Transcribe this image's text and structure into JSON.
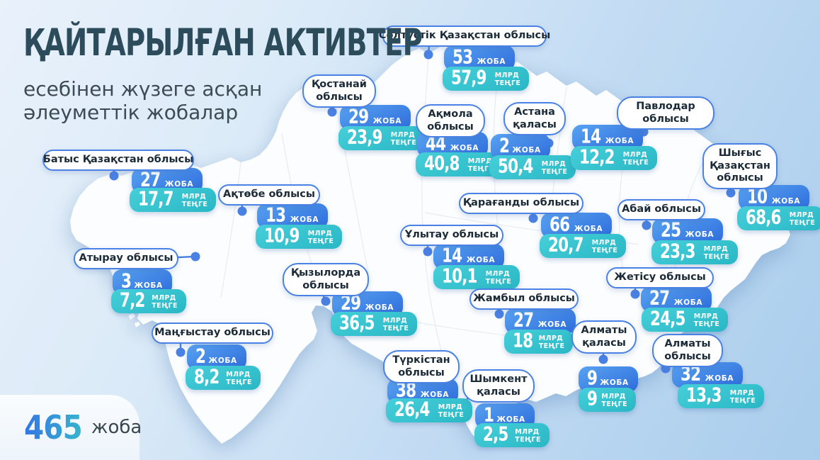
{
  "header": {
    "title": "ҚАЙТАРЫЛҒАН АКТИВТЕР",
    "subtitle_line1": "есебінен жүзеге асқан",
    "subtitle_line2": "әлеуметтік жобалар"
  },
  "total": {
    "value": "465",
    "unit": "жоба"
  },
  "labels": {
    "project_unit": "ЖОБА",
    "amount_unit_top": "МЛРД",
    "amount_unit_bottom": "ТЕҢГЕ"
  },
  "regions": [
    {
      "id": "soltustik-kazakhstan",
      "name": "Солтүстік Қазақстан облысы",
      "projects": "53",
      "amount": "57,9"
    },
    {
      "id": "kostanay",
      "name": "Қостанай облысы",
      "projects": "29",
      "amount": "23,9"
    },
    {
      "id": "akmola",
      "name": "Ақмола облысы",
      "projects": "44",
      "amount": "40,8"
    },
    {
      "id": "astana",
      "name": "Астана қаласы",
      "projects": "2",
      "amount": "50,4"
    },
    {
      "id": "pavlodar",
      "name": "Павлодар облысы",
      "projects": "14",
      "amount": "12,2"
    },
    {
      "id": "shygys-kazakhstan",
      "name": "Шығыс Қазақстан облысы",
      "projects": "10",
      "amount": "68,6"
    },
    {
      "id": "batys-kazakhstan",
      "name": "Батыс Қазақстан облысы",
      "projects": "27",
      "amount": "17,7"
    },
    {
      "id": "aktobe",
      "name": "Ақтөбе облысы",
      "projects": "13",
      "amount": "10,9"
    },
    {
      "id": "atyrau",
      "name": "Атырау облысы",
      "projects": "3",
      "amount": "7,2"
    },
    {
      "id": "kyzylorda",
      "name": "Қызылорда облысы",
      "projects": "29",
      "amount": "36,5"
    },
    {
      "id": "ulytau",
      "name": "Ұлытау облысы",
      "projects": "14",
      "amount": "10,1"
    },
    {
      "id": "karagandy",
      "name": "Қарағанды облысы",
      "projects": "66",
      "amount": "20,7"
    },
    {
      "id": "abay",
      "name": "Абай облысы",
      "projects": "25",
      "amount": "23,3"
    },
    {
      "id": "zhetisu",
      "name": "Жетісу облысы",
      "projects": "27",
      "amount": "24,5"
    },
    {
      "id": "zhambyl",
      "name": "Жамбыл облысы",
      "projects": "27",
      "amount": "18"
    },
    {
      "id": "mangystau",
      "name": "Маңғыстау облысы",
      "projects": "2",
      "amount": "8,2"
    },
    {
      "id": "almaty-city",
      "name": "Алматы қаласы",
      "projects": "9",
      "amount": "9"
    },
    {
      "id": "almaty-oblysy",
      "name": "Алматы облысы",
      "projects": "32",
      "amount": "13,3"
    },
    {
      "id": "turkistan",
      "name": "Түркістан облысы",
      "projects": "38",
      "amount": "26,4"
    },
    {
      "id": "shymkent",
      "name": "Шымкент қаласы",
      "projects": "1",
      "amount": "2,5"
    }
  ],
  "colors": {
    "accent_blue": "#4a81e4",
    "badge_blue_start": "#58a3f2",
    "badge_blue_end": "#2e6cdb",
    "badge_teal": "#2fc2cd",
    "title_color": "#2d4c5b",
    "background_start": "#e9f1fb",
    "background_end": "#a9cdec",
    "map_fill": "#fbfdff"
  }
}
